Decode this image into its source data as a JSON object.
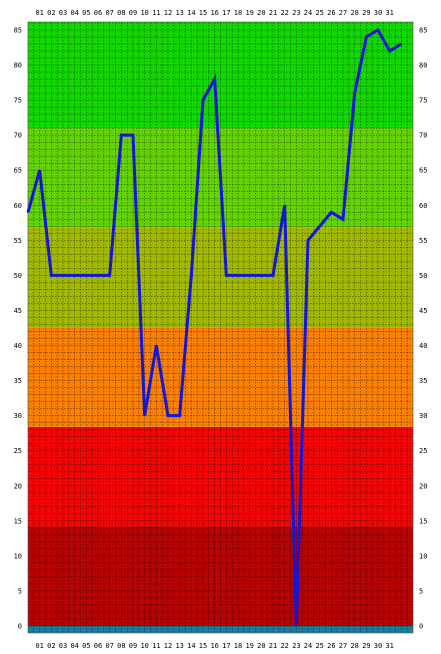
{
  "chart_data": {
    "type": "line",
    "title": "",
    "xlabel": "",
    "ylabel": "",
    "x_labels": [
      "01",
      "02",
      "03",
      "04",
      "05",
      "06",
      "07",
      "08",
      "09",
      "10",
      "11",
      "12",
      "13",
      "14",
      "15",
      "16",
      "17",
      "18",
      "19",
      "20",
      "21",
      "22",
      "23",
      "24",
      "25",
      "26",
      "27",
      "28",
      "29",
      "30",
      "31"
    ],
    "x_range": [
      0,
      33
    ],
    "ylim": [
      0,
      85
    ],
    "y_ticks": [
      0,
      5,
      10,
      15,
      20,
      25,
      30,
      35,
      40,
      45,
      50,
      55,
      60,
      65,
      70,
      75,
      80,
      85
    ],
    "grid": true,
    "series": [
      {
        "color": "#1515d8",
        "points": [
          [
            0,
            59
          ],
          [
            1,
            65
          ],
          [
            2,
            50
          ],
          [
            3,
            50
          ],
          [
            4,
            50
          ],
          [
            5,
            50
          ],
          [
            6,
            50
          ],
          [
            7,
            50
          ],
          [
            8,
            70
          ],
          [
            9,
            70
          ],
          [
            10,
            30
          ],
          [
            11,
            40
          ],
          [
            12,
            30
          ],
          [
            13,
            30
          ],
          [
            14,
            50
          ],
          [
            15,
            75
          ],
          [
            16,
            78
          ],
          [
            17,
            50
          ],
          [
            18,
            50
          ],
          [
            19,
            50
          ],
          [
            20,
            50
          ],
          [
            21,
            50
          ],
          [
            22,
            60
          ],
          [
            23,
            0
          ],
          [
            24,
            55
          ],
          [
            25,
            57
          ],
          [
            26,
            59
          ],
          [
            27,
            58
          ],
          [
            28,
            76
          ],
          [
            29,
            84
          ],
          [
            30,
            85
          ],
          [
            31,
            82
          ],
          [
            32,
            83
          ]
        ]
      }
    ],
    "bands": [
      {
        "from": -1,
        "to": 0,
        "color": "#1a7c9a"
      },
      {
        "from": 0,
        "to": 14.2,
        "color": "#b70303"
      },
      {
        "from": 14.2,
        "to": 28.4,
        "color": "#f20505"
      },
      {
        "from": 28.4,
        "to": 42.6,
        "color": "#fb7f00"
      },
      {
        "from": 42.6,
        "to": 56.8,
        "color": "#a0b800"
      },
      {
        "from": 56.8,
        "to": 71,
        "color": "#62d200"
      },
      {
        "from": 71,
        "to": 86.5,
        "color": "#12d800"
      }
    ]
  }
}
